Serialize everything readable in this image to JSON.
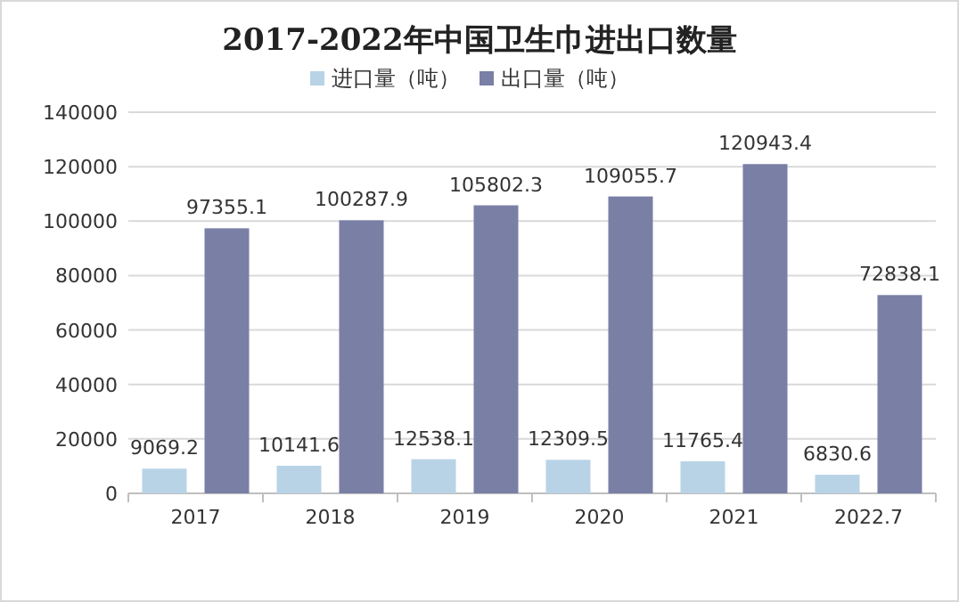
{
  "chart_data": {
    "type": "bar",
    "title": "2017-2022年中国卫生巾进出口数量",
    "categories": [
      "2017",
      "2018",
      "2019",
      "2020",
      "2021",
      "2022.7"
    ],
    "series": [
      {
        "name": "进口量（吨）",
        "color": "#b8d3e6",
        "values": [
          9069.2,
          10141.6,
          12538.1,
          12309.5,
          11765.4,
          6830.6
        ]
      },
      {
        "name": "出口量（吨）",
        "color": "#7a7fa6",
        "values": [
          97355.1,
          100287.9,
          105802.3,
          109055.7,
          120943.4,
          72838.1
        ]
      }
    ],
    "ylim": [
      0,
      140000
    ],
    "yticks": [
      0,
      20000,
      40000,
      60000,
      80000,
      100000,
      120000,
      140000
    ],
    "grid": "y",
    "legend": "top",
    "data_labels": true
  }
}
